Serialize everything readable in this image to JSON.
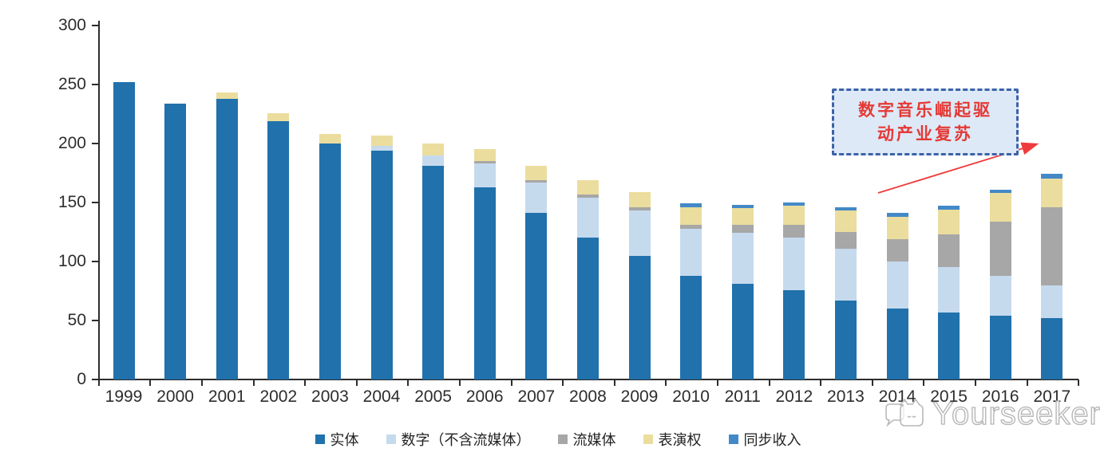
{
  "watermark": {
    "brand": "Yourseeker"
  },
  "annotation": {
    "line1": "数字音乐崛起驱",
    "line2": "动产业复苏",
    "text_color": "#e53935",
    "border_color": "#3c63a8",
    "fill_color": "#dde9f7",
    "arrow_color": "#ef3b3b"
  },
  "colors": {
    "axis": "#2d2d2d",
    "background": "#ffffff",
    "watermark_gray": "#b5b5b5"
  },
  "chart_data": {
    "type": "bar",
    "stacked": true,
    "title": "",
    "xlabel": "",
    "ylabel": "",
    "ylim": [
      0,
      300
    ],
    "yticks": [
      0,
      50,
      100,
      150,
      200,
      250,
      300
    ],
    "grid": false,
    "legend_position": "bottom",
    "categories": [
      "1999",
      "2000",
      "2001",
      "2002",
      "2003",
      "2004",
      "2005",
      "2006",
      "2007",
      "2008",
      "2009",
      "2010",
      "2011",
      "2012",
      "2013",
      "2014",
      "2015",
      "2016",
      "2017"
    ],
    "series": [
      {
        "name": "实体",
        "color": "#2071ac",
        "values": [
          252,
          234,
          238,
          219,
          200,
          194,
          181,
          163,
          141,
          120,
          105,
          88,
          81,
          76,
          67,
          60,
          57,
          54,
          52
        ]
      },
      {
        "name": "数字（不含流媒体）",
        "color": "#c6daee",
        "values": [
          0,
          0,
          0,
          0,
          0,
          4,
          9,
          20,
          26,
          34,
          38,
          40,
          43,
          44,
          44,
          40,
          38,
          34,
          28
        ]
      },
      {
        "name": "流媒体",
        "color": "#a7a7a7",
        "values": [
          0,
          0,
          0,
          0,
          0,
          0,
          0,
          2,
          2,
          3,
          3,
          3,
          7,
          11,
          14,
          19,
          28,
          46,
          66
        ]
      },
      {
        "name": "表演权",
        "color": "#ebdd9e",
        "values": [
          0,
          0,
          5,
          7,
          8,
          9,
          10,
          10,
          12,
          12,
          13,
          15,
          14,
          16,
          18,
          19,
          21,
          24,
          24
        ]
      },
      {
        "name": "同步收入",
        "color": "#4389c7",
        "values": [
          0,
          0,
          0,
          0,
          0,
          0,
          0,
          0,
          0,
          0,
          0,
          3,
          3,
          3,
          3,
          3,
          3,
          3,
          4
        ]
      }
    ]
  }
}
